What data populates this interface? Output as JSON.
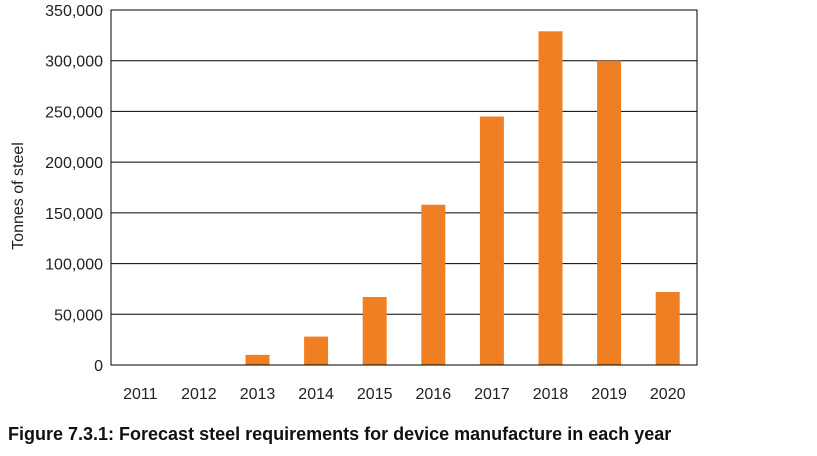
{
  "caption": "Figure 7.3.1: Forecast steel requirements for device manufacture in each year",
  "chart_data": {
    "type": "bar",
    "categories": [
      "2011",
      "2012",
      "2013",
      "2014",
      "2015",
      "2016",
      "2017",
      "2018",
      "2019",
      "2020"
    ],
    "values": [
      0,
      0,
      10000,
      28000,
      67000,
      158000,
      245000,
      329000,
      300000,
      72000
    ],
    "ylabel": "Tonnes of steel",
    "xlabel": "",
    "ylim": [
      0,
      350000
    ],
    "yticks": [
      0,
      50000,
      100000,
      150000,
      200000,
      250000,
      300000,
      350000
    ],
    "ytick_labels": [
      "0",
      "50,000",
      "100,000",
      "150,000",
      "200,000",
      "250,000",
      "300,000",
      "350,000"
    ],
    "grid": "horizontal",
    "bar_color": "#f07f23",
    "grid_color": "#000000"
  }
}
